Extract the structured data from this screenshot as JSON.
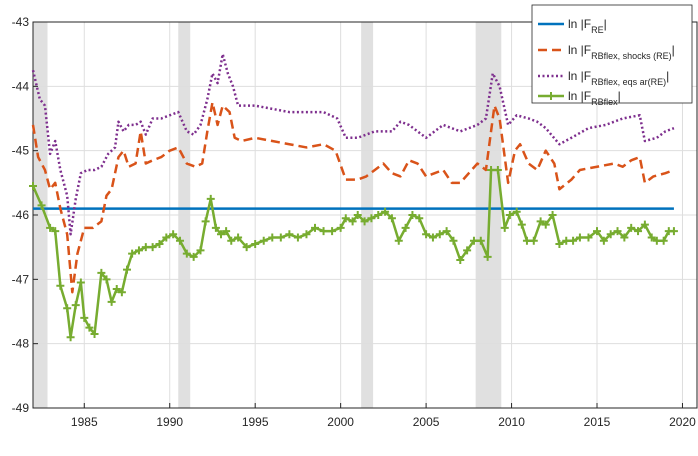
{
  "chart_data": {
    "type": "line",
    "xlim": [
      1982,
      2020.85
    ],
    "xticks": [
      1985,
      1990,
      1995,
      2000,
      2005,
      2010,
      2015,
      2020
    ],
    "ylim": [
      -49,
      -43
    ],
    "yticks": [
      -49,
      -48,
      -47,
      -46,
      -45,
      -44,
      -43
    ],
    "grid": true,
    "legend": "top-right",
    "shaded_periods": [
      [
        1982,
        1982.85
      ],
      [
        1990.5,
        1991.2
      ],
      [
        2001.2,
        2001.9
      ],
      [
        2007.9,
        2009.4
      ]
    ],
    "shade_color": "#e0e0e0",
    "series": [
      {
        "name": [
          "ln |F",
          "RE",
          "|"
        ],
        "color": "#0072bd",
        "style": "solid",
        "x": [
          1982,
          2019.5
        ],
        "values": [
          -45.9,
          -45.9
        ]
      },
      {
        "name": [
          "ln |F",
          "RBflex, shocks (RE)",
          "|"
        ],
        "color": "#d95319",
        "style": "dashed",
        "x": [
          1982,
          1982.3,
          1982.7,
          1983.0,
          1983.3,
          1983.6,
          1984.0,
          1984.3,
          1984.6,
          1985.0,
          1985.5,
          1986.0,
          1986.3,
          1986.6,
          1987.0,
          1987.3,
          1987.6,
          1988.0,
          1988.3,
          1988.6,
          1989.0,
          1989.5,
          1990.0,
          1990.5,
          1991.0,
          1991.5,
          1991.9,
          1992.2,
          1992.5,
          1992.8,
          1993.1,
          1993.5,
          1993.8,
          1994.2,
          1995.0,
          1996.0,
          1997.0,
          1998.0,
          1999.0,
          1999.7,
          2000.3,
          2001.0,
          2001.5,
          2002.0,
          2002.5,
          2003.0,
          2003.5,
          2004.0,
          2004.5,
          2005.0,
          2005.5,
          2006.0,
          2006.5,
          2007.0,
          2007.5,
          2008.0,
          2008.5,
          2009.0,
          2009.3,
          2009.8,
          2010.2,
          2010.5,
          2011.0,
          2011.5,
          2012.0,
          2012.5,
          2012.8,
          2013.5,
          2014.0,
          2015.0,
          2016.0,
          2016.5,
          2017.0,
          2017.5,
          2017.8,
          2018.3,
          2019.0,
          2019.5
        ],
        "values": [
          -44.6,
          -45.1,
          -45.3,
          -45.6,
          -45.5,
          -45.9,
          -46.3,
          -47.2,
          -46.6,
          -46.2,
          -46.2,
          -46.1,
          -45.7,
          -45.6,
          -45.1,
          -45.0,
          -45.25,
          -45.2,
          -44.7,
          -45.2,
          -45.15,
          -45.1,
          -45.0,
          -44.95,
          -45.2,
          -45.25,
          -45.2,
          -44.7,
          -44.25,
          -44.6,
          -44.3,
          -44.4,
          -44.8,
          -44.85,
          -44.8,
          -44.85,
          -44.9,
          -44.95,
          -44.9,
          -45.0,
          -45.45,
          -45.45,
          -45.4,
          -45.3,
          -45.2,
          -45.35,
          -45.4,
          -45.15,
          -45.2,
          -45.4,
          -45.35,
          -45.3,
          -45.5,
          -45.5,
          -45.35,
          -45.2,
          -45.3,
          -44.3,
          -44.5,
          -45.5,
          -45.0,
          -44.9,
          -45.2,
          -45.3,
          -45.0,
          -45.2,
          -45.6,
          -45.45,
          -45.3,
          -45.25,
          -45.2,
          -45.25,
          -45.15,
          -45.1,
          -45.5,
          -45.4,
          -45.35,
          -45.3
        ]
      },
      {
        "name": [
          "ln |F",
          "RBflex, eqs ar(RE)",
          "|"
        ],
        "color": "#7e2f8e",
        "style": "dotted",
        "x": [
          1982,
          1982.4,
          1982.7,
          1983.0,
          1983.3,
          1983.6,
          1984.0,
          1984.2,
          1984.5,
          1984.8,
          1985.2,
          1985.6,
          1986.0,
          1986.4,
          1986.8,
          1987.0,
          1987.3,
          1987.6,
          1988.0,
          1988.3,
          1988.6,
          1989.0,
          1989.5,
          1990.0,
          1990.5,
          1991.0,
          1991.4,
          1991.8,
          1992.2,
          1992.5,
          1992.8,
          1993.1,
          1993.4,
          1993.7,
          1994.0,
          1995.0,
          1996.0,
          1997.0,
          1998.0,
          1999.0,
          1999.8,
          2000.3,
          2001.0,
          2002.0,
          2003.0,
          2003.5,
          2004.0,
          2005.0,
          2006.0,
          2007.0,
          2008.0,
          2008.5,
          2008.9,
          2009.3,
          2009.8,
          2010.3,
          2011.0,
          2011.5,
          2012.0,
          2012.8,
          2013.5,
          2014.5,
          2015.5,
          2016.5,
          2017.5,
          2017.8,
          2018.5,
          2019.0,
          2019.5
        ],
        "values": [
          -43.75,
          -44.2,
          -44.3,
          -45.05,
          -44.85,
          -45.3,
          -45.7,
          -46.3,
          -45.75,
          -45.35,
          -45.3,
          -45.3,
          -45.25,
          -45.05,
          -44.95,
          -44.55,
          -44.7,
          -44.6,
          -44.6,
          -44.55,
          -44.75,
          -44.5,
          -44.5,
          -44.45,
          -44.4,
          -44.7,
          -44.75,
          -44.6,
          -44.2,
          -43.8,
          -43.95,
          -43.5,
          -43.8,
          -44.0,
          -44.3,
          -44.3,
          -44.35,
          -44.4,
          -44.4,
          -44.4,
          -44.5,
          -44.8,
          -44.8,
          -44.7,
          -44.7,
          -44.55,
          -44.6,
          -44.8,
          -44.6,
          -44.7,
          -44.6,
          -44.5,
          -43.8,
          -44.0,
          -44.6,
          -44.45,
          -44.5,
          -44.55,
          -44.65,
          -44.9,
          -44.8,
          -44.65,
          -44.6,
          -44.5,
          -44.45,
          -44.85,
          -44.8,
          -44.7,
          -44.65
        ]
      },
      {
        "name": [
          "ln |F",
          "RBflex",
          "|"
        ],
        "color": "#77ac30",
        "style": "solid",
        "marker": "+",
        "x": [
          1982.0,
          1982.5,
          1983.0,
          1983.3,
          1983.6,
          1984.0,
          1984.2,
          1984.5,
          1984.8,
          1985.0,
          1985.3,
          1985.6,
          1986.0,
          1986.3,
          1986.6,
          1986.9,
          1987.2,
          1987.5,
          1987.8,
          1988.2,
          1988.6,
          1989.0,
          1989.4,
          1989.8,
          1990.2,
          1990.6,
          1991.0,
          1991.4,
          1991.8,
          1992.1,
          1992.4,
          1992.7,
          1993.0,
          1993.3,
          1993.6,
          1994.0,
          1994.5,
          1995.0,
          1995.5,
          1996.0,
          1996.5,
          1997.0,
          1997.5,
          1998.0,
          1998.5,
          1999.0,
          1999.5,
          2000.0,
          2000.3,
          2000.7,
          2001.0,
          2001.4,
          2001.8,
          2002.2,
          2002.6,
          2003.0,
          2003.4,
          2003.8,
          2004.2,
          2004.6,
          2005.0,
          2005.4,
          2005.8,
          2006.2,
          2006.6,
          2007.0,
          2007.4,
          2007.8,
          2008.2,
          2008.6,
          2008.8,
          2009.2,
          2009.6,
          2009.9,
          2010.3,
          2010.6,
          2010.9,
          2011.3,
          2011.7,
          2012.0,
          2012.4,
          2012.8,
          2013.2,
          2013.6,
          2014.0,
          2014.5,
          2015.0,
          2015.4,
          2015.8,
          2016.2,
          2016.6,
          2017.0,
          2017.4,
          2017.8,
          2018.2,
          2018.5,
          2018.9,
          2019.2,
          2019.5
        ],
        "values": [
          -45.55,
          -45.85,
          -46.2,
          -46.25,
          -47.1,
          -47.45,
          -47.9,
          -47.4,
          -47.05,
          -47.6,
          -47.75,
          -47.85,
          -46.9,
          -47.0,
          -47.35,
          -47.15,
          -47.2,
          -46.85,
          -46.6,
          -46.55,
          -46.5,
          -46.5,
          -46.45,
          -46.35,
          -46.3,
          -46.4,
          -46.6,
          -46.65,
          -46.55,
          -46.1,
          -45.75,
          -46.2,
          -46.3,
          -46.25,
          -46.4,
          -46.35,
          -46.5,
          -46.45,
          -46.4,
          -46.35,
          -46.35,
          -46.3,
          -46.35,
          -46.3,
          -46.2,
          -46.25,
          -46.25,
          -46.2,
          -46.05,
          -46.1,
          -46.0,
          -46.1,
          -46.05,
          -46.0,
          -45.95,
          -46.05,
          -46.4,
          -46.2,
          -46.0,
          -46.05,
          -46.3,
          -46.35,
          -46.3,
          -46.25,
          -46.4,
          -46.7,
          -46.55,
          -46.4,
          -46.4,
          -46.65,
          -45.3,
          -45.3,
          -46.2,
          -46.0,
          -45.95,
          -46.15,
          -46.4,
          -46.4,
          -46.1,
          -46.15,
          -46.0,
          -46.45,
          -46.4,
          -46.4,
          -46.35,
          -46.35,
          -46.25,
          -46.4,
          -46.3,
          -46.25,
          -46.35,
          -46.2,
          -46.25,
          -46.15,
          -46.35,
          -46.4,
          -46.4,
          -46.25,
          -46.25
        ]
      }
    ]
  }
}
